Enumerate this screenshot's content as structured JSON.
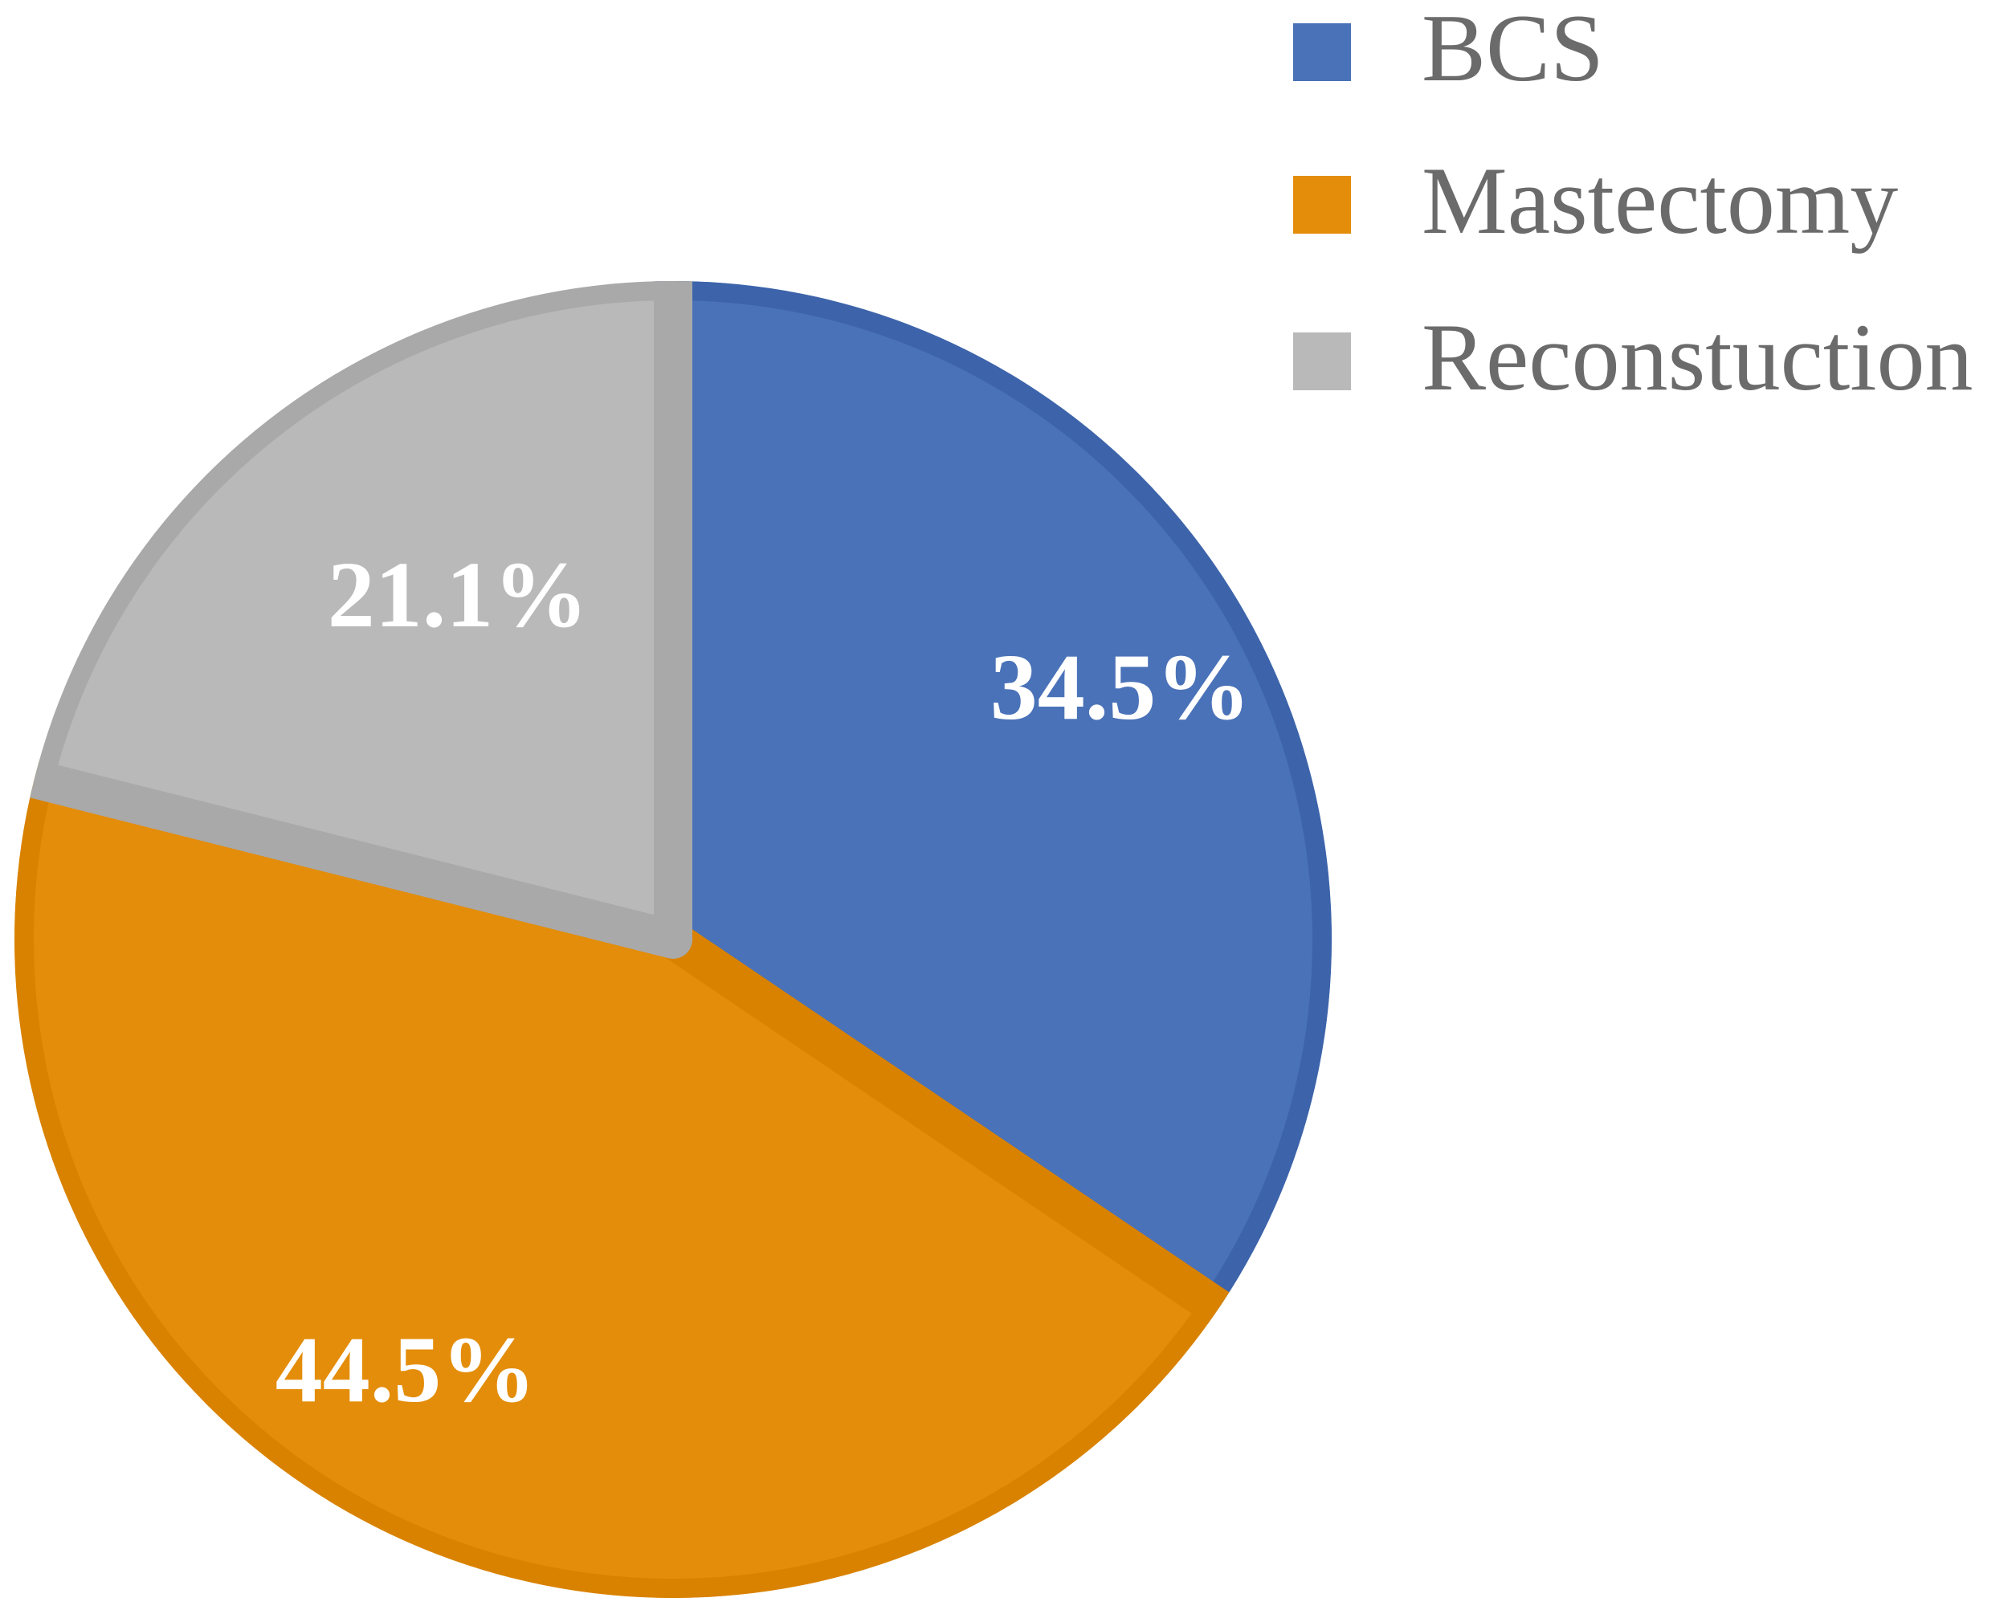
{
  "chart_data": {
    "type": "pie",
    "title": "",
    "start_angle_deg": 0,
    "direction": "clockwise",
    "legend_position": "top-right",
    "slices": [
      {
        "name": "BCS",
        "value": 34.5,
        "label": "34.5%",
        "color": "#4a72b8",
        "border_color": "#3d64aa"
      },
      {
        "name": "Mastectomy",
        "value": 44.5,
        "label": "44.5%",
        "color": "#e48d0a",
        "border_color": "#d98200"
      },
      {
        "name": "Reconstuction",
        "value": 21.1,
        "label": "21.1%",
        "color": "#b9b9b9",
        "border_color": "#a9a9a9"
      }
    ]
  }
}
